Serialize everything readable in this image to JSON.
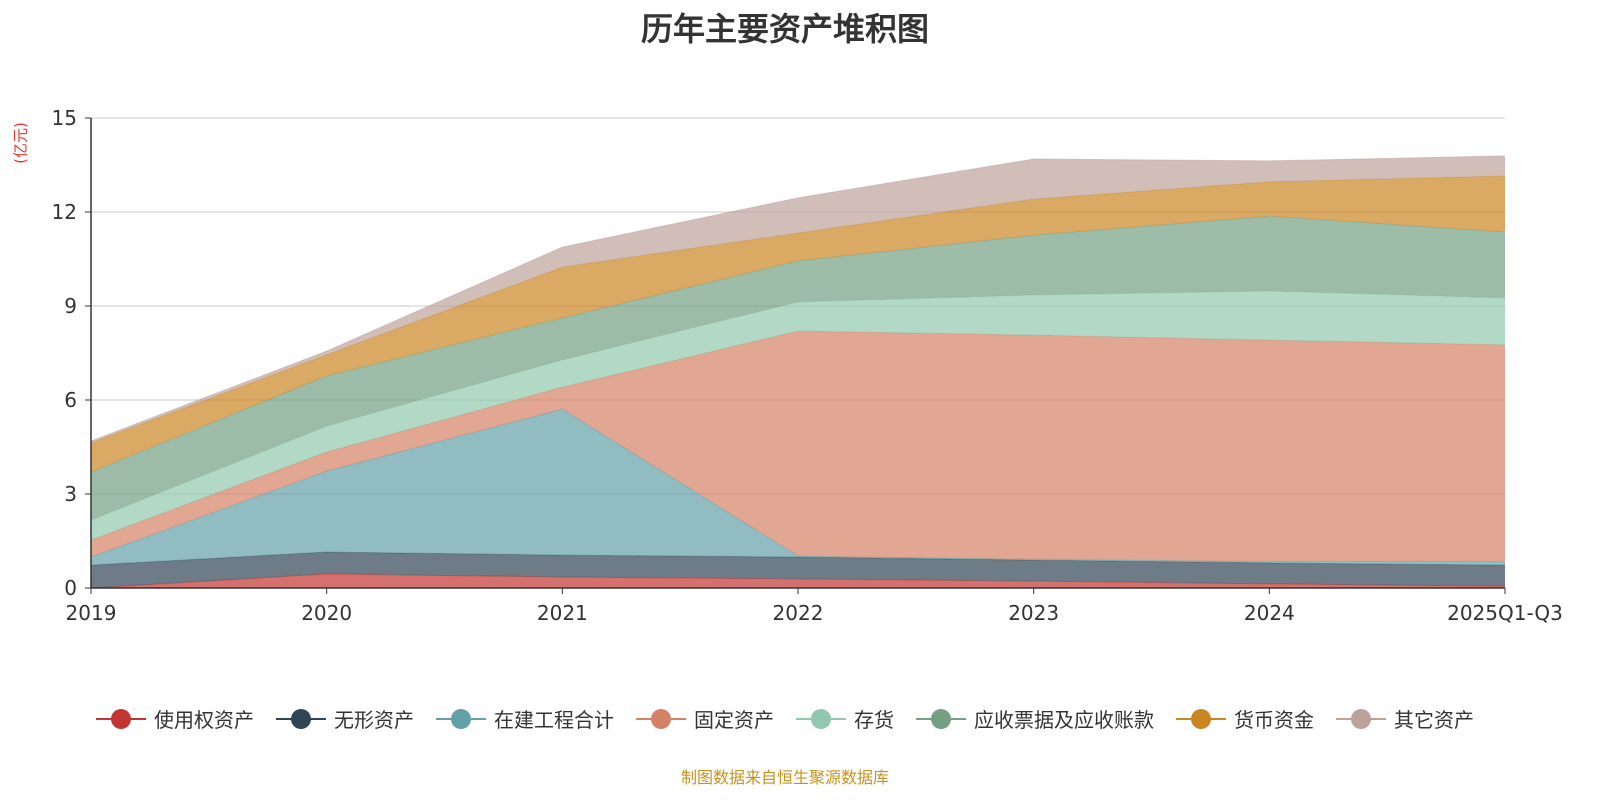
{
  "chart_data": {
    "type": "area",
    "stacked": true,
    "title": "历年主要资产堆积图",
    "ylabel": "(亿元)",
    "xlabel": "",
    "ylim": [
      0,
      15
    ],
    "yticks": [
      "0",
      "3",
      "6",
      "9",
      "12",
      "15"
    ],
    "grid": true,
    "legend_position": "bottom",
    "categories": [
      "2019",
      "2020",
      "2021",
      "2022",
      "2023",
      "2024",
      "2025Q1-Q3"
    ],
    "series": [
      {
        "name": "使用权资产",
        "color": "#c23531",
        "values": [
          0.0,
          0.45,
          0.35,
          0.29,
          0.22,
          0.13,
          0.06
        ]
      },
      {
        "name": "无形资产",
        "color": "#2f4554",
        "values": [
          0.73,
          0.7,
          0.7,
          0.7,
          0.67,
          0.67,
          0.67
        ]
      },
      {
        "name": "在建工程合计",
        "color": "#61a0a8",
        "values": [
          0.26,
          2.58,
          4.66,
          0.03,
          0.03,
          0.05,
          0.12
        ]
      },
      {
        "name": "固定资产",
        "color": "#d48265",
        "values": [
          0.54,
          0.61,
          0.7,
          7.18,
          7.15,
          7.06,
          6.91
        ]
      },
      {
        "name": "存货",
        "color": "#91c7ae",
        "values": [
          0.64,
          0.83,
          0.87,
          0.93,
          1.28,
          1.57,
          1.5
        ]
      },
      {
        "name": "应收票据及应收账款",
        "color": "#749f83",
        "values": [
          1.53,
          1.6,
          1.34,
          1.31,
          1.91,
          2.39,
          2.1
        ]
      },
      {
        "name": "货币资金",
        "color": "#ca8622",
        "values": [
          0.93,
          0.67,
          1.62,
          0.89,
          1.15,
          1.09,
          1.79
        ]
      },
      {
        "name": "其它资产",
        "color": "#bda29a",
        "values": [
          0.06,
          0.12,
          0.64,
          1.12,
          1.28,
          0.67,
          0.64
        ]
      }
    ]
  },
  "source": "制图数据来自恒生聚源数据库"
}
